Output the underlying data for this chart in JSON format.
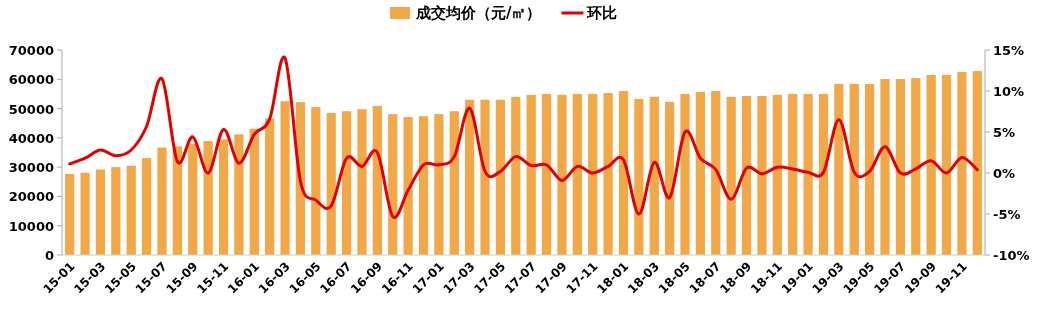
{
  "chart_data": {
    "type": "bar",
    "categories": [
      "15-01",
      null,
      "15-03",
      null,
      "15-05",
      null,
      "15-07",
      null,
      "15-09",
      null,
      "15-11",
      null,
      "16-01",
      null,
      "16-03",
      null,
      "16-05",
      null,
      "16-07",
      null,
      "16-09",
      null,
      "16-11",
      null,
      "17-01",
      null,
      "17-03",
      null,
      "17-05",
      null,
      "17-07",
      null,
      "17-09",
      null,
      "17-11",
      null,
      "18-01",
      null,
      "18-03",
      null,
      "18-05",
      null,
      "18-07",
      null,
      "18-09",
      null,
      "18-11",
      null,
      "19-01",
      null,
      "19-03",
      null,
      "19-05",
      null,
      "19-07",
      null,
      "19-09",
      null,
      "19-11",
      null
    ],
    "series": [
      {
        "name": "成交均价（元/㎡）",
        "color": "#f0a848",
        "values": [
          27700,
          28100,
          29200,
          30000,
          30500,
          33100,
          36700,
          37100,
          38000,
          38900,
          39500,
          41200,
          43100,
          46600,
          52500,
          52200,
          50500,
          48500,
          49100,
          49800,
          50900,
          48100,
          47100,
          47400,
          48100,
          49100,
          53000,
          53000,
          53000,
          54000,
          54700,
          55000,
          54700,
          55000,
          55000,
          55300,
          56000,
          53300,
          54000,
          52300,
          55000,
          55700,
          56000,
          54000,
          54300,
          54300,
          54700,
          55000,
          55000,
          55000,
          58400,
          58400,
          58400,
          60100,
          60100,
          60400,
          61500,
          61500,
          62500,
          62800
        ]
      },
      {
        "name": "环比",
        "type": "line",
        "axis": "y2",
        "color": "#e00000",
        "values": [
          1.1,
          1.8,
          2.8,
          2.1,
          2.8,
          5.7,
          11.5,
          1.4,
          4.4,
          0,
          5.3,
          1.2,
          4.7,
          6.6,
          14.0,
          -1.0,
          -3.3,
          -4.0,
          1.8,
          0.8,
          2.5,
          -5.3,
          -2.1,
          1.0,
          1.0,
          2.0,
          7.9,
          0.2,
          0.2,
          2.0,
          0.9,
          1.0,
          -0.9,
          0.8,
          0,
          0.8,
          1.6,
          -5.0,
          1.3,
          -3.0,
          5.0,
          1.8,
          0.4,
          -3.2,
          0.6,
          -0.1,
          0.7,
          0.5,
          0.1,
          0.1,
          6.5,
          0.1,
          0.2,
          3.2,
          0,
          0.5,
          1.5,
          0,
          1.9,
          0.4
        ]
      }
    ],
    "ylim": [
      0,
      70000
    ],
    "yticks": [
      0,
      10000,
      20000,
      30000,
      40000,
      50000,
      60000,
      70000
    ],
    "y2lim": [
      -10,
      15
    ],
    "y2ticks": [
      {
        "value": -10,
        "label": "-10%"
      },
      {
        "value": -5,
        "label": "-5%"
      },
      {
        "value": 0,
        "label": "0%"
      },
      {
        "value": 5,
        "label": "5%"
      },
      {
        "value": 10,
        "label": "10%"
      },
      {
        "value": 15,
        "label": "15%"
      }
    ],
    "grid": false,
    "legend": "top"
  }
}
